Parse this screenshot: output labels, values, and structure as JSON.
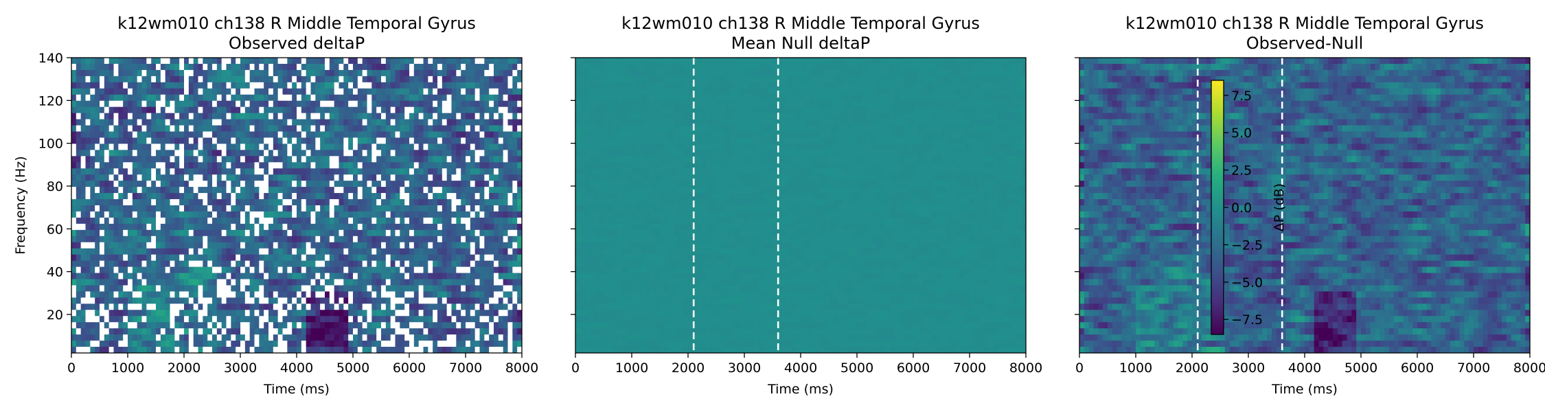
{
  "chart_data": [
    {
      "type": "heatmap",
      "title_line1": "k12wm010 ch138 R Middle Temporal Gyrus",
      "title_line2": "Observed deltaP",
      "xlabel": "Time (ms)",
      "ylabel": "Frequency (Hz)",
      "xlim": [
        0,
        8000
      ],
      "ylim": [
        2,
        140
      ],
      "xticks": [
        0,
        1000,
        2000,
        3000,
        4000,
        5000,
        6000,
        7000,
        8000
      ],
      "yticks": [
        20,
        40,
        60,
        80,
        100,
        120,
        140
      ],
      "colormap": "viridis",
      "masked_nonsignificant": true,
      "low_patch": {
        "time_ms": [
          4200,
          4900
        ],
        "freq_hz": [
          2,
          30
        ]
      },
      "event_lines_ms": []
    },
    {
      "type": "heatmap",
      "title_line1": "k12wm010 ch138 R Middle Temporal Gyrus",
      "title_line2": "Mean Null deltaP",
      "xlabel": "Time (ms)",
      "xlim": [
        0,
        8000
      ],
      "ylim": [
        2,
        140
      ],
      "xticks": [
        0,
        1000,
        2000,
        3000,
        4000,
        5000,
        6000,
        7000,
        8000
      ],
      "yticks": [
        20,
        40,
        60,
        80,
        100,
        120,
        140
      ],
      "colormap": "viridis",
      "approx_value_db": 0,
      "event_lines_ms": [
        2100,
        3600
      ]
    },
    {
      "type": "heatmap",
      "title_line1": "k12wm010 ch138 R Middle Temporal Gyrus",
      "title_line2": "Observed-Null",
      "xlabel": "Time (ms)",
      "xlim": [
        0,
        8000
      ],
      "ylim": [
        2,
        140
      ],
      "xticks": [
        0,
        1000,
        2000,
        3000,
        4000,
        5000,
        6000,
        7000,
        8000
      ],
      "yticks": [
        20,
        40,
        60,
        80,
        100,
        120,
        140
      ],
      "colormap": "viridis",
      "event_lines_ms": [
        2100,
        3600
      ],
      "colorbar": {
        "label": "ΔP (dB)",
        "range": [
          -8.5,
          8.5
        ],
        "ticks": [
          7.5,
          5.0,
          2.5,
          0.0,
          -2.5,
          -5.0,
          -7.5
        ],
        "tick_labels": [
          "7.5",
          "5.0",
          "2.5",
          "0.0",
          "−2.5",
          "−5.0",
          "−7.5"
        ]
      },
      "low_patch": {
        "time_ms": [
          4200,
          4900
        ],
        "freq_hz": [
          2,
          30
        ]
      }
    }
  ]
}
